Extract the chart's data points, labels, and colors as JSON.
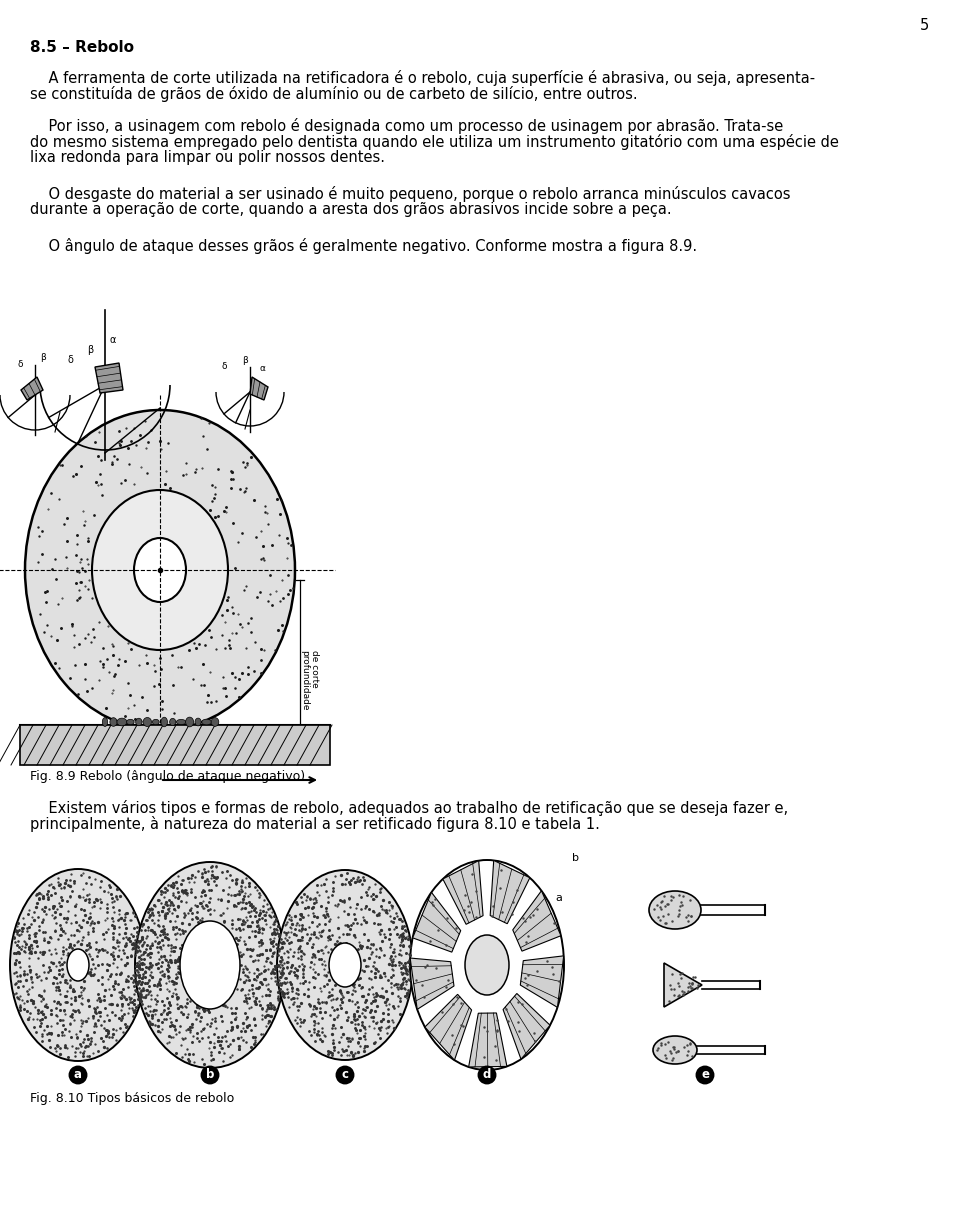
{
  "page_number": "5",
  "bg_color": "#ffffff",
  "heading": "8.5 – Rebolo",
  "para1_line1": "    A ferramenta de corte utilizada na retificadora é o rebolo, cuja superfície é abrasiva, ou seja, apresenta-",
  "para1_line2": "se constituída de grãos de óxido de alumínio ou de carbeto de silício, entre outros.",
  "para2_line1": "    Por isso, a usinagem com rebolo é designada como um processo de usinagem por abrasão. Trata-se",
  "para2_line2": "do mesmo sistema empregado pelo dentista quando ele utiliza um instrumento gitatório com uma espécie de",
  "para2_line3": "lixa redonda para limpar ou polir nossos dentes.",
  "para3_line1": "    O desgaste do material a ser usinado é muito pequeno, porque o rebolo arranca minúsculos cavacos",
  "para3_line2": "durante a operação de corte, quando a aresta dos grãos abrasivos incide sobre a peça.",
  "para4": "    O ângulo de ataque desses grãos é geralmente negativo. Conforme mostra a figura 8.9.",
  "fig89_caption": "Fig. 8.9 Rebolo (ângulo de ataque negativo)",
  "para5_line1": "    Existem vários tipos e formas de rebolo, adequados ao trabalho de retificação que se deseja fazer e,",
  "para5_line2": "principalmente, à natureza do material a ser retificado figura 8.10 e tabela 1.",
  "fig810_caption": "Fig. 8.10 Tipos básicos de rebolo"
}
